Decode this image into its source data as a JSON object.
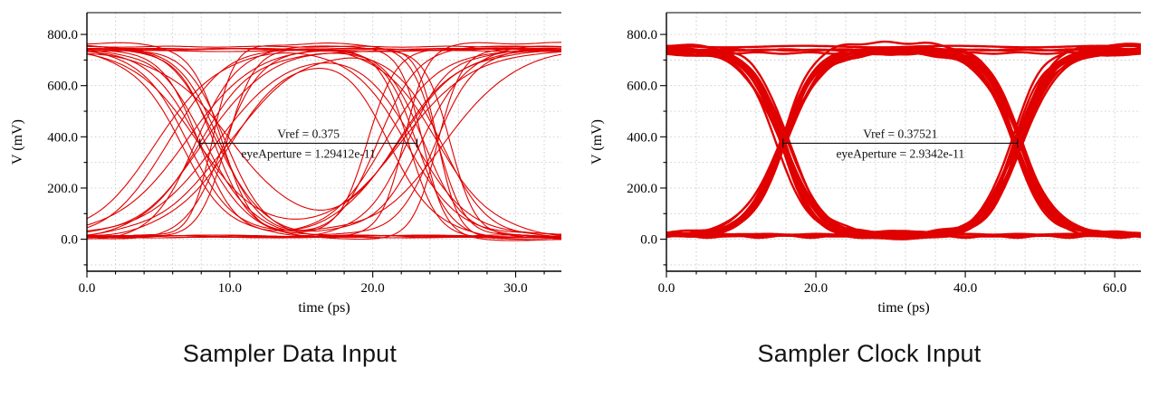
{
  "figure": {
    "background": "#ffffff",
    "trace_color": "#e00000"
  },
  "chart_data": [
    {
      "type": "line",
      "subtype": "eye_diagram",
      "title": "Sampler Data Input",
      "xlabel": "time (ps)",
      "ylabel": "V (mV)",
      "xlim": [
        0,
        33.2
      ],
      "ylim": [
        -125,
        885
      ],
      "xticks": [
        0,
        10,
        20,
        30
      ],
      "xtick_labels": [
        "0.0",
        "10.0",
        "20.0",
        "30.0"
      ],
      "x_minor_step": 2,
      "yticks": [
        0,
        200,
        400,
        600,
        800
      ],
      "ytick_labels": [
        "0.0",
        "200.0",
        "400.0",
        "600.0",
        "800.0"
      ],
      "y_minor_step": 100,
      "grid": true,
      "color": "#e00000",
      "annotation": {
        "vref_text": "Vref = 0.375",
        "aperture_text": "eyeAperture = 1.29412e-11",
        "vref_mv": 375,
        "span_ps": [
          7.9,
          23.1
        ]
      },
      "eye": {
        "high_mv": 748,
        "low_mv": 8,
        "crossings_ps": [
          7.8,
          23.2
        ],
        "transition_width_ps": [
          0.7,
          2.6
        ],
        "jitter_ps": 1.4,
        "n_transition_traces": 24,
        "n_flat_traces": 5,
        "rail_noise_mv": 8,
        "wiggle_mv": 4,
        "stroke_width": 1.1,
        "seed": 12
      }
    },
    {
      "type": "line",
      "subtype": "eye_diagram",
      "title": "Sampler Clock Input",
      "xlabel": "time (ps)",
      "ylabel": "V (mV)",
      "xlim": [
        0,
        63.5
      ],
      "ylim": [
        -125,
        885
      ],
      "xticks": [
        0,
        20,
        40,
        60
      ],
      "xtick_labels": [
        "0.0",
        "20.0",
        "40.0",
        "60.0"
      ],
      "x_minor_step": 4,
      "yticks": [
        0,
        200,
        400,
        600,
        800
      ],
      "ytick_labels": [
        "0.0",
        "200.0",
        "400.0",
        "600.0",
        "800.0"
      ],
      "y_minor_step": 100,
      "grid": true,
      "color": "#e00000",
      "annotation": {
        "vref_text": "Vref = 0.37521",
        "aperture_text": "eyeAperture = 2.9342e-11",
        "vref_mv": 375,
        "span_ps": [
          15.6,
          47.0
        ]
      },
      "eye": {
        "high_mv": 737,
        "low_mv": 18,
        "crossings_ps": [
          15.6,
          47.0
        ],
        "transition_width_ps": [
          2.0,
          2.6
        ],
        "jitter_ps": 0.35,
        "n_transition_traces": 30,
        "n_flat_traces": 4,
        "rail_noise_mv": 10,
        "wiggle_mv": 5,
        "stroke_width": 2.4,
        "seed": 5
      }
    }
  ]
}
